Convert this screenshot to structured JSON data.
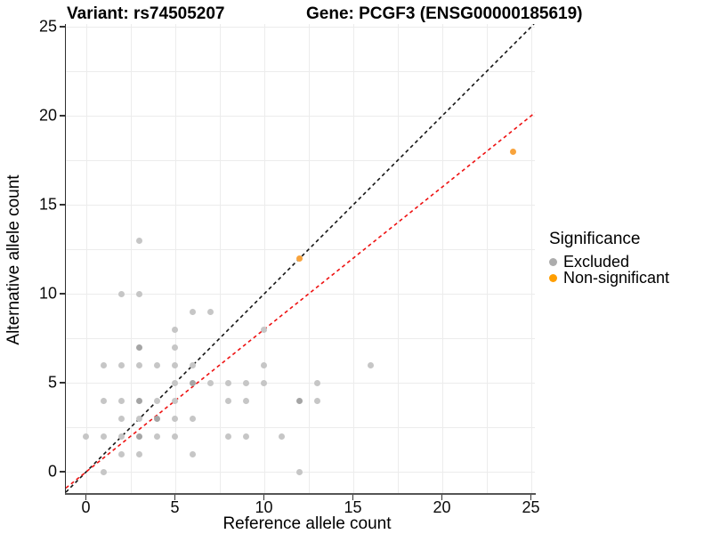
{
  "chart_data": {
    "type": "scatter",
    "title_left": "Variant: rs74505207",
    "title_right": "Gene: PCGF3 (ENSG00000185619)",
    "xlabel": "Reference allele count",
    "ylabel": "Alternative allele count",
    "x_ticks": [
      0,
      5,
      10,
      15,
      20,
      25
    ],
    "y_ticks": [
      0,
      5,
      10,
      15,
      20,
      25
    ],
    "xlim": [
      -1.15,
      25.25
    ],
    "ylim": [
      -1.18,
      25.15
    ],
    "grid_step": 2.5,
    "grid_on": true,
    "legend_position": "right",
    "legend": {
      "title": "Significance",
      "items": [
        {
          "label": "Excluded",
          "color": "#acacac"
        },
        {
          "label": "Non-significant",
          "color": "#ff9e00"
        }
      ]
    },
    "lines": [
      {
        "name": "identity-line",
        "style": "dashed",
        "color": "#141414",
        "slope": 1.0,
        "intercept": 0
      },
      {
        "name": "fit-line",
        "style": "dashed",
        "color": "#ee1111",
        "slope": 0.8,
        "intercept": 0
      }
    ],
    "series": [
      {
        "name": "Excluded",
        "color": "#c6c6c6",
        "overlap_color": "#a5a5a5",
        "points": [
          {
            "x": 1,
            "y": 0
          },
          {
            "x": 12,
            "y": 0
          },
          {
            "x": 2,
            "y": 1
          },
          {
            "x": 3,
            "y": 1
          },
          {
            "x": 6,
            "y": 1
          },
          {
            "x": 0,
            "y": 2
          },
          {
            "x": 1,
            "y": 2
          },
          {
            "x": 2,
            "y": 2
          },
          {
            "x": 3,
            "y": 2,
            "overlap": true
          },
          {
            "x": 4,
            "y": 2
          },
          {
            "x": 5,
            "y": 2
          },
          {
            "x": 8,
            "y": 2
          },
          {
            "x": 9,
            "y": 2
          },
          {
            "x": 11,
            "y": 2
          },
          {
            "x": 2,
            "y": 3
          },
          {
            "x": 3,
            "y": 3
          },
          {
            "x": 4,
            "y": 3,
            "overlap": true
          },
          {
            "x": 5,
            "y": 3
          },
          {
            "x": 6,
            "y": 3
          },
          {
            "x": 1,
            "y": 4
          },
          {
            "x": 2,
            "y": 4
          },
          {
            "x": 3,
            "y": 4,
            "overlap": true
          },
          {
            "x": 4,
            "y": 4
          },
          {
            "x": 5,
            "y": 4
          },
          {
            "x": 8,
            "y": 4
          },
          {
            "x": 9,
            "y": 4
          },
          {
            "x": 12,
            "y": 4,
            "overlap": true
          },
          {
            "x": 13,
            "y": 4
          },
          {
            "x": 5,
            "y": 5
          },
          {
            "x": 6,
            "y": 5,
            "overlap": true
          },
          {
            "x": 7,
            "y": 5
          },
          {
            "x": 8,
            "y": 5
          },
          {
            "x": 9,
            "y": 5
          },
          {
            "x": 10,
            "y": 5
          },
          {
            "x": 13,
            "y": 5
          },
          {
            "x": 1,
            "y": 6
          },
          {
            "x": 2,
            "y": 6
          },
          {
            "x": 3,
            "y": 6
          },
          {
            "x": 4,
            "y": 6
          },
          {
            "x": 5,
            "y": 6
          },
          {
            "x": 6,
            "y": 6
          },
          {
            "x": 10,
            "y": 6
          },
          {
            "x": 16,
            "y": 6
          },
          {
            "x": 3,
            "y": 7,
            "overlap": true
          },
          {
            "x": 5,
            "y": 7
          },
          {
            "x": 5,
            "y": 8
          },
          {
            "x": 10,
            "y": 8
          },
          {
            "x": 6,
            "y": 9
          },
          {
            "x": 7,
            "y": 9
          },
          {
            "x": 2,
            "y": 10
          },
          {
            "x": 3,
            "y": 10
          },
          {
            "x": 3,
            "y": 13
          }
        ]
      },
      {
        "name": "Non-significant",
        "color": "#f8a33c",
        "overlap_color": "#f8a33c",
        "points": [
          {
            "x": 12,
            "y": 12
          },
          {
            "x": 24,
            "y": 18
          }
        ]
      }
    ]
  }
}
